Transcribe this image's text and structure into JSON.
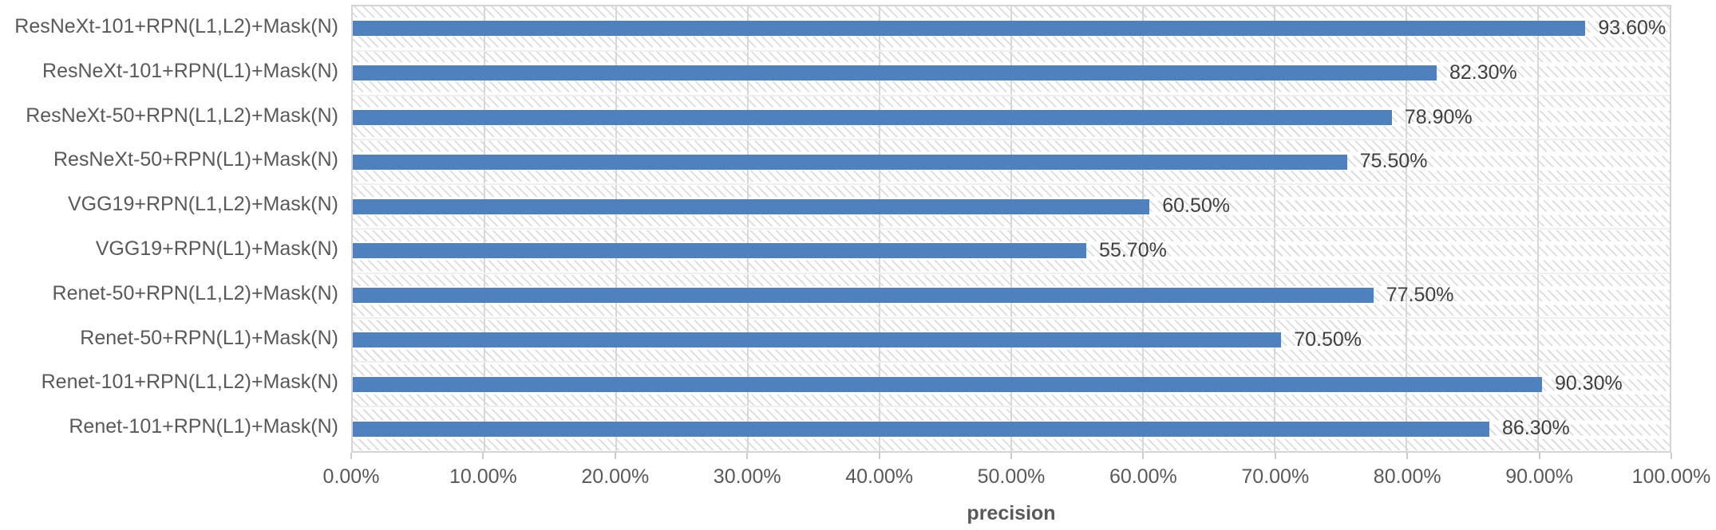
{
  "chart_data": {
    "type": "bar",
    "orientation": "horizontal",
    "title": "",
    "xlabel": "precision",
    "ylabel": "",
    "xlim": [
      0,
      100
    ],
    "x_tick_labels": [
      "0.00%",
      "10.00%",
      "20.00%",
      "30.00%",
      "40.00%",
      "50.00%",
      "60.00%",
      "70.00%",
      "80.00%",
      "90.00%",
      "100.00%"
    ],
    "categories": [
      "ResNeXt-101+RPN(L1,L2)+Mask(N)",
      "ResNeXt-101+RPN(L1)+Mask(N)",
      "ResNeXt-50+RPN(L1,L2)+Mask(N)",
      "ResNeXt-50+RPN(L1)+Mask(N)",
      "VGG19+RPN(L1,L2)+Mask(N)",
      "VGG19+RPN(L1)+Mask(N)",
      "Renet-50+RPN(L1,L2)+Mask(N)",
      "Renet-50+RPN(L1)+Mask(N)",
      "Renet-101+RPN(L1,L2)+Mask(N)",
      "Renet-101+RPN(L1)+Mask(N)"
    ],
    "values": [
      93.6,
      82.3,
      78.9,
      75.5,
      60.5,
      55.7,
      77.5,
      70.5,
      90.3,
      86.3
    ],
    "value_labels": [
      "93.60%",
      "82.30%",
      "78.90%",
      "75.50%",
      "60.50%",
      "55.70%",
      "77.50%",
      "70.50%",
      "90.30%",
      "86.30%"
    ],
    "grid": {
      "vertical_major": true,
      "major_step_percent": 10,
      "horizontal": false
    },
    "legend_position": "none",
    "plot_background": "diagonal-hatch"
  },
  "colors": {
    "bar": "#4E81BD",
    "category_text": "#595959",
    "value_text": "#3F3F3F",
    "tick_text": "#595959",
    "axis_title_text": "#595959",
    "gridline": "#D7D7D7",
    "plot_border": "#D4D4D4",
    "hatch_line": "#DCDCDC",
    "background": "#FFFFFF"
  }
}
